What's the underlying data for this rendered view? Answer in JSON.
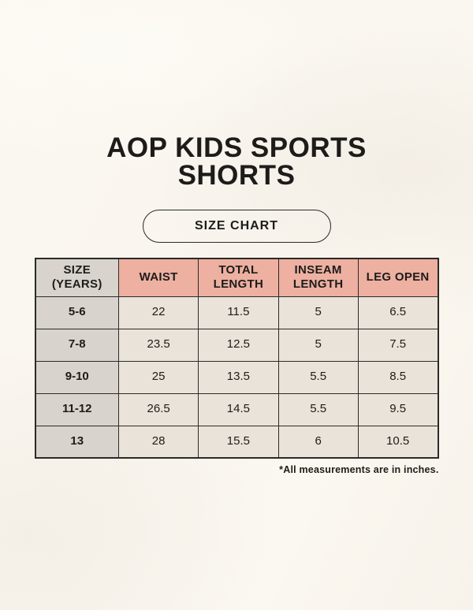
{
  "page": {
    "title_line1": "AOP KIDS SPORTS",
    "title_line2": "SHORTS",
    "size_chart_button_label": "SIZE CHART",
    "footnote": "*All measurements are in inches."
  },
  "colors": {
    "background": "#faf7f0",
    "header_pink": "#edb0a1",
    "first_col_grey": "#d9d3cd",
    "cell_beige": "#eae3d9",
    "border": "#2b2a27",
    "text": "#1d1c1a"
  },
  "chart_data": {
    "type": "table",
    "title": "AOP KIDS SPORTS SHORTS — SIZE CHART",
    "units": "inches",
    "columns": [
      "SIZE (YEARS)",
      "WAIST",
      "TOTAL LENGTH",
      "INSEAM LENGTH",
      "LEG OPEN"
    ],
    "rows": [
      [
        "5-6",
        22,
        11.5,
        5,
        6.5
      ],
      [
        "7-8",
        23.5,
        12.5,
        5,
        7.5
      ],
      [
        "9-10",
        25,
        13.5,
        5.5,
        8.5
      ],
      [
        "11-12",
        26.5,
        14.5,
        5.5,
        9.5
      ],
      [
        "13",
        28,
        15.5,
        6,
        10.5
      ]
    ]
  }
}
